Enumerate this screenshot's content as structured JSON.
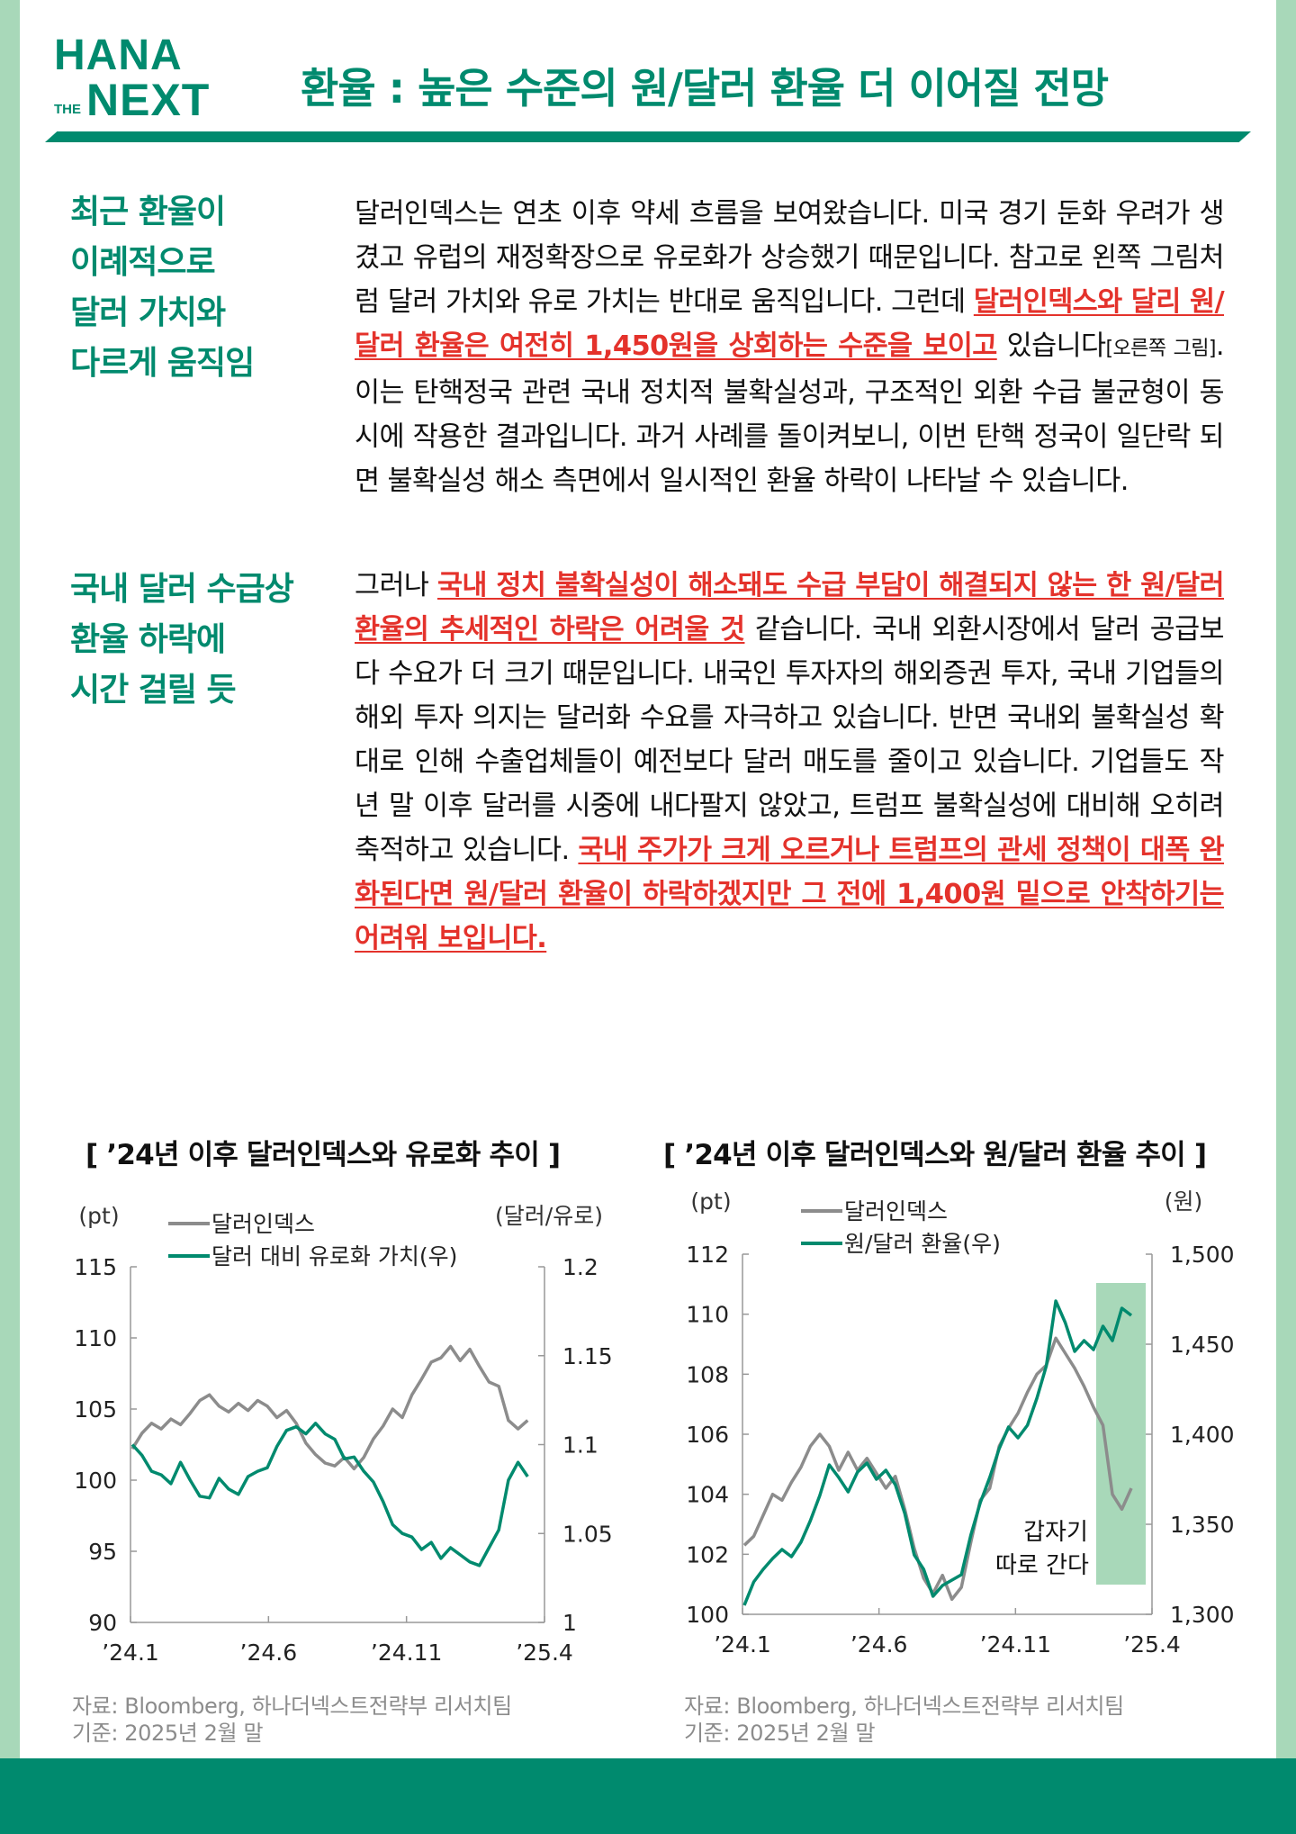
{
  "logo": {
    "line1": "HANA",
    "the": "THE",
    "next": "NEXT"
  },
  "title": "환율 : 높은 수준의 원/달러 환율 더 이어질 전망",
  "sections": [
    {
      "head": [
        "최근 환율이",
        "이례적으로",
        "달러 가치와",
        "다르게 움직임"
      ],
      "p1": "달러인덱스는 연초 이후 약세 흐름을 보여왔습니다. 미국 경기 둔화 우려가 생겼고 유럽의 재정확장으로 유로화가 상승했기 때문입니다. 참고로 왼쪽 그림처럼 달러 가치와 유로 가치는 반대로 움직입니다. 그런데 ",
      "h1": "달러인덱스와 달리 원/달러 환율은 여전히 1,450원을 상회하는 수준을 보이고",
      "p2": " 있습니다",
      "small": "[오른쪽 그림]",
      "p3": ". 이는 탄핵정국 관련 국내 정치적 불확실성과, 구조적인 외환 수급 불균형이 동시에 작용한 결과입니다. 과거 사례를 돌이켜보니, 이번 탄핵 정국이 일단락 되면 불확실성 해소 측면에서 일시적인 환율 하락이 나타날 수 있습니다."
    },
    {
      "head": [
        "국내 달러 수급상",
        "환율 하락에",
        "시간 걸릴 듯"
      ],
      "p1": "그러나 ",
      "h1": "국내 정치 불확실성이 해소돼도 수급 부담이 해결되지 않는 한 원/달러 환율의 추세적인 하락은 어려울 것",
      "p2": " 같습니다. 국내 외환시장에서 달러 공급보다 수요가 더 크기 때문입니다. 내국인 투자자의 해외증권 투자, 국내 기업들의 해외 투자 의지는 달러화 수요를 자극하고 있습니다. 반면 국내외 불확실성 확대로 인해 수출업체들이 예전보다 달러 매도를 줄이고 있습니다. 기업들도 작년 말 이후 달러를 시중에 내다팔지 않았고, 트럼프 불확실성에 대비해 오히려 축적하고 있습니다. ",
      "h2": "국내 주가가 크게 오르거나 트럼프의 관세 정책이 대폭 완화된다면 원/달러 환율이 하락하겠지만 그 전에 1,400원 밑으로 안착하기는 어려워 보입니다."
    }
  ],
  "colors": {
    "green": "#008a6e",
    "gray": "#8c8c8c",
    "red": "#e4322b",
    "highlight": "#a8d8b9"
  },
  "chart_data": [
    {
      "type": "line",
      "title": "[ ’24년 이후 달러인덱스와 유로화 추이 ]",
      "left_unit": "(pt)",
      "right_unit": "(달러/유로)",
      "x_ticks": [
        "’24.1",
        "’24.6",
        "’24.11",
        "’25.4"
      ],
      "left_ticks": [
        "115",
        "110",
        "105",
        "100",
        "95",
        "90"
      ],
      "right_ticks": [
        "1.2",
        "1.15",
        "1.1",
        "1.05",
        "1"
      ],
      "ylim_left": [
        90,
        115
      ],
      "ylim_right": [
        1.0,
        1.2
      ],
      "series": [
        {
          "name": "달러인덱스",
          "axis": "left",
          "color": "#8c8c8c",
          "values": [
            102.2,
            103.3,
            104.0,
            103.6,
            104.3,
            103.9,
            104.7,
            105.6,
            106.0,
            105.2,
            104.8,
            105.4,
            104.9,
            105.6,
            105.2,
            104.4,
            104.9,
            104.0,
            102.6,
            101.8,
            101.2,
            101.0,
            101.6,
            100.8,
            101.6,
            102.9,
            103.8,
            105.0,
            104.4,
            106.0,
            107.1,
            108.3,
            108.6,
            109.4,
            108.4,
            109.2,
            108.0,
            106.9,
            106.6,
            104.2,
            103.6,
            104.2
          ]
        },
        {
          "name": "달러 대비 유로화 가치(우)",
          "axis": "right",
          "color": "#008a6e",
          "values": [
            1.1,
            1.094,
            1.085,
            1.083,
            1.078,
            1.09,
            1.08,
            1.071,
            1.07,
            1.081,
            1.075,
            1.072,
            1.082,
            1.085,
            1.087,
            1.099,
            1.108,
            1.11,
            1.106,
            1.112,
            1.106,
            1.103,
            1.092,
            1.093,
            1.085,
            1.079,
            1.068,
            1.055,
            1.05,
            1.048,
            1.041,
            1.045,
            1.036,
            1.042,
            1.038,
            1.034,
            1.032,
            1.042,
            1.052,
            1.08,
            1.09,
            1.082
          ]
        }
      ],
      "legend": [
        "달러인덱스",
        "달러 대비 유로화 가치(우)"
      ],
      "source": "자료: Bloomberg, 하나더넥스트전략부 리서치팀",
      "basis": "기준: 2025년 2월 말"
    },
    {
      "type": "line",
      "title": "[ ’24년 이후 달러인덱스와 원/달러 환율 추이 ]",
      "left_unit": "(pt)",
      "right_unit": "(원)",
      "x_ticks": [
        "’24.1",
        "’24.6",
        "’24.11",
        "’25.4"
      ],
      "left_ticks": [
        "112",
        "110",
        "108",
        "106",
        "104",
        "102",
        "100"
      ],
      "right_ticks": [
        "1,500",
        "1,450",
        "1,400",
        "1,350",
        "1,300"
      ],
      "ylim_left": [
        100,
        112
      ],
      "ylim_right": [
        1300,
        1500
      ],
      "series": [
        {
          "name": "달러인덱스",
          "axis": "left",
          "color": "#8c8c8c",
          "values": [
            102.3,
            102.6,
            103.3,
            104.0,
            103.8,
            104.4,
            104.9,
            105.6,
            106.0,
            105.6,
            104.8,
            105.4,
            104.8,
            105.2,
            104.7,
            104.2,
            104.6,
            103.5,
            102.2,
            101.2,
            100.7,
            101.3,
            100.5,
            100.9,
            102.4,
            103.8,
            104.2,
            105.6,
            106.2,
            106.7,
            107.4,
            108.0,
            108.3,
            109.2,
            108.7,
            108.2,
            107.6,
            106.9,
            106.3,
            104.0,
            103.5,
            104.2
          ]
        },
        {
          "name": "원/달러 환율(우)",
          "axis": "right",
          "color": "#008a6e",
          "values": [
            1305,
            1318,
            1325,
            1331,
            1336,
            1332,
            1340,
            1352,
            1366,
            1383,
            1376,
            1368,
            1379,
            1384,
            1375,
            1380,
            1372,
            1356,
            1333,
            1325,
            1310,
            1316,
            1319,
            1322,
            1344,
            1362,
            1376,
            1392,
            1404,
            1398,
            1405,
            1420,
            1438,
            1474,
            1462,
            1446,
            1452,
            1447,
            1460,
            1452,
            1470,
            1466
          ]
        }
      ],
      "legend": [
        "달러인덱스",
        "원/달러 환율(우)"
      ],
      "annotation": [
        "갑자기",
        "따로 간다"
      ],
      "source": "자료: Bloomberg, 하나더넥스트전략부 리서치팀",
      "basis": "기준: 2025년 2월 말"
    }
  ]
}
